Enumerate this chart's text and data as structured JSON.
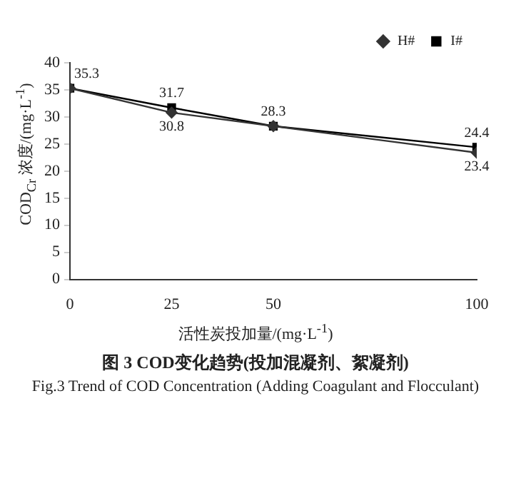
{
  "chart_data": {
    "type": "line",
    "title": "图 3  COD变化趋势(投加混凝剂、絮凝剂)",
    "subtitle": "Fig.3  Trend of COD Concentration (Adding Coagulant and Flocculant)",
    "xlabel": "活性炭投加量/(mg·L$^{-1}$)",
    "ylabel": "COD$_{Cr}$ 浓度/(mg·L$^{-1}$)",
    "x": [
      0,
      25,
      50,
      100
    ],
    "xlim": [
      0,
      100
    ],
    "xticks": [
      0,
      25,
      50,
      100
    ],
    "ylim": [
      0,
      40
    ],
    "yticks": [
      0,
      5,
      10,
      15,
      20,
      25,
      30,
      35,
      40
    ],
    "series": [
      {
        "name": "H#",
        "color": "#333333",
        "marker": "diamond",
        "values": [
          35.3,
          30.8,
          28.3,
          23.4
        ],
        "value_labels": [
          null,
          "30.8",
          null,
          "23.4"
        ]
      },
      {
        "name": "I#",
        "color": "#000000",
        "marker": "square",
        "values": [
          35.3,
          31.7,
          28.3,
          24.4
        ],
        "value_labels": [
          "35.3",
          "31.7",
          "28.3",
          "24.4"
        ]
      }
    ],
    "grid": false,
    "legend": "top right"
  }
}
